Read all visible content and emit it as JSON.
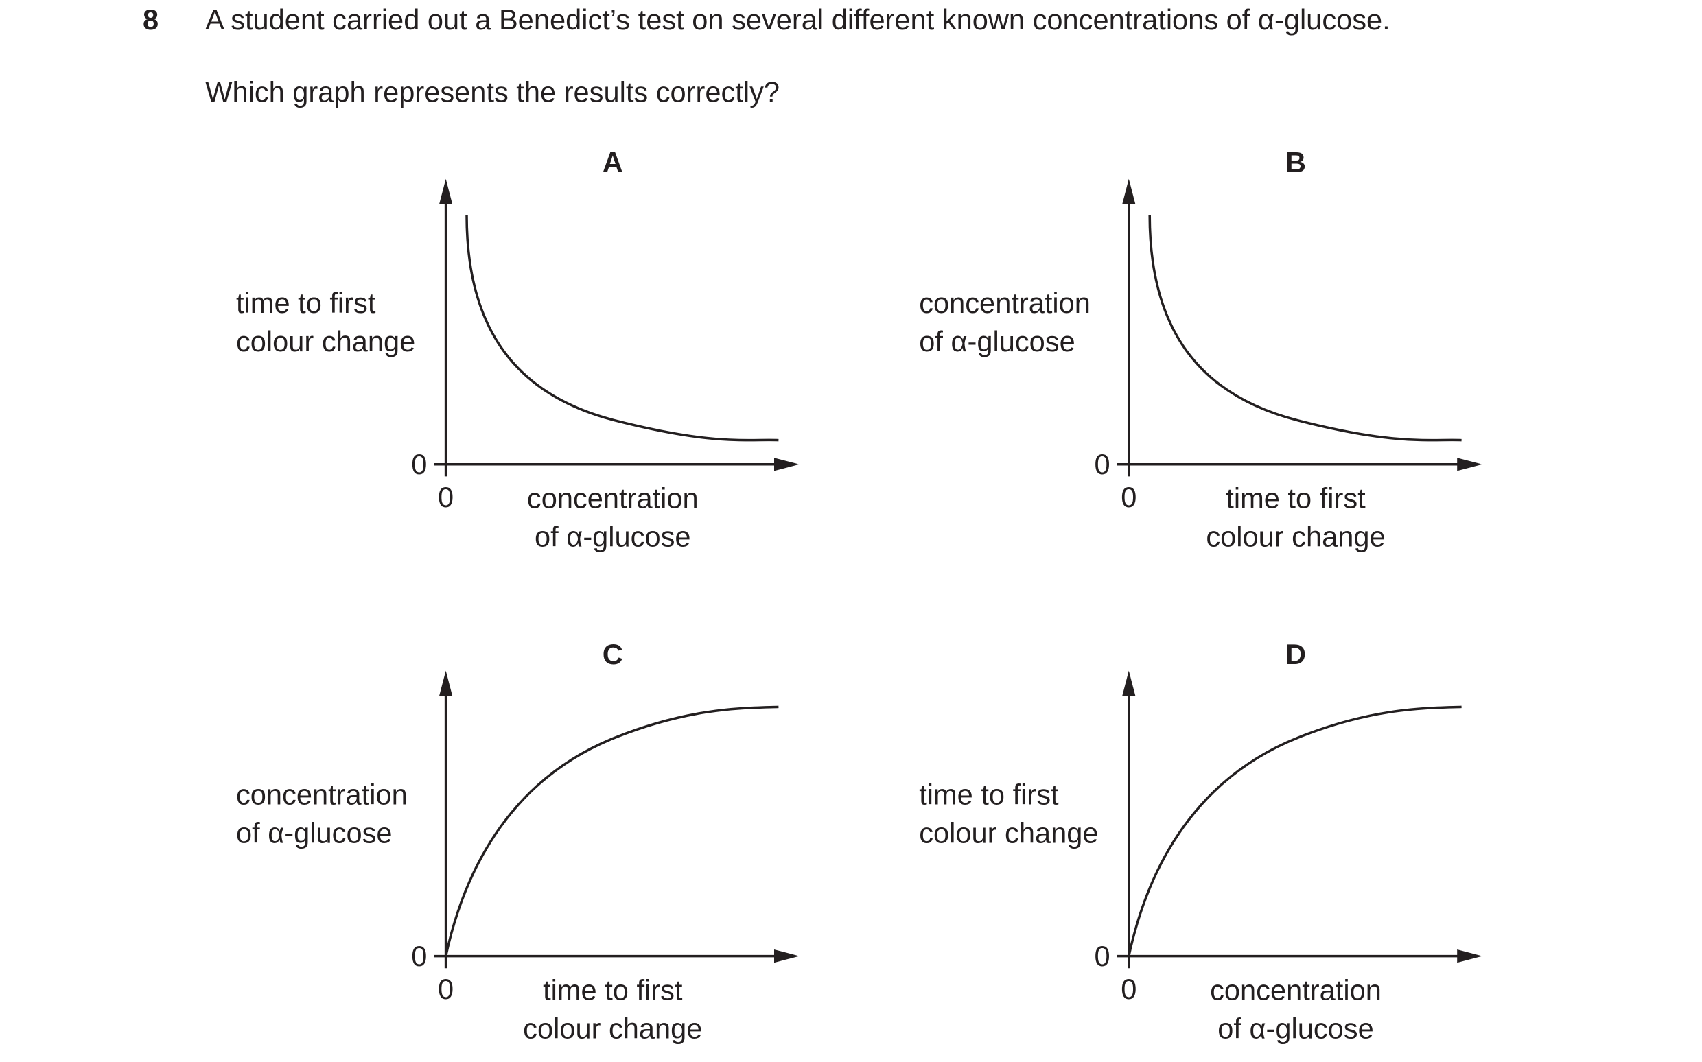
{
  "question": {
    "number": "8",
    "text": "A student carried out a Benedict’s test on several different known concentrations of α-glucose.",
    "prompt": "Which graph represents the results correctly?"
  },
  "graphs": [
    {
      "letter": "A",
      "y_label": [
        "time to first",
        "colour change"
      ],
      "x_label": [
        "concentration",
        "of α-glucose"
      ],
      "y_origin": "0",
      "x_origin": "0"
    },
    {
      "letter": "B",
      "y_label": [
        "concentration",
        "of α-glucose"
      ],
      "x_label": [
        "time to first",
        "colour change"
      ],
      "y_origin": "0",
      "x_origin": "0"
    },
    {
      "letter": "C",
      "y_label": [
        "concentration",
        "of α-glucose"
      ],
      "x_label": [
        "time to first",
        "colour change"
      ],
      "y_origin": "0",
      "x_origin": "0"
    },
    {
      "letter": "D",
      "y_label": [
        "time to first",
        "colour change"
      ],
      "x_label": [
        "concentration",
        "of α-glucose"
      ],
      "y_origin": "0",
      "x_origin": "0"
    }
  ]
}
